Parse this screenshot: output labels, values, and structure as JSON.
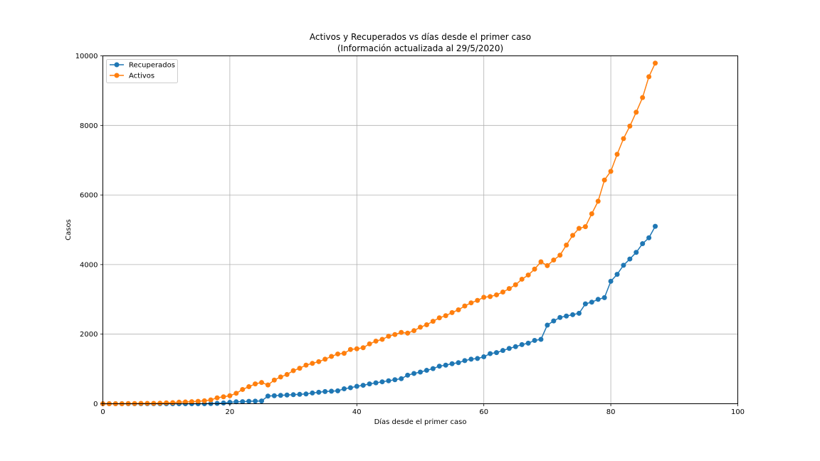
{
  "chart_data": {
    "type": "line",
    "title": "Activos y Recuperados vs días desde el primer caso",
    "subtitle": "(Información actualizada al 29/5/2020)",
    "xlabel": "Días desde el primer caso",
    "ylabel": "Casos",
    "xlim": [
      0,
      100
    ],
    "ylim": [
      0,
      10000
    ],
    "xticks": [
      0,
      20,
      40,
      60,
      80,
      100
    ],
    "yticks": [
      0,
      2000,
      4000,
      6000,
      8000,
      10000
    ],
    "grid": true,
    "legend_position": "top-left",
    "series": [
      {
        "name": "Recuperados",
        "color": "#1f77b4",
        "x": [
          0,
          1,
          2,
          3,
          4,
          5,
          6,
          7,
          8,
          9,
          10,
          11,
          12,
          13,
          14,
          15,
          16,
          17,
          18,
          19,
          20,
          21,
          22,
          23,
          24,
          25,
          26,
          27,
          28,
          29,
          30,
          31,
          32,
          33,
          34,
          35,
          36,
          37,
          38,
          39,
          40,
          41,
          42,
          43,
          44,
          45,
          46,
          47,
          48,
          49,
          50,
          51,
          52,
          53,
          54,
          55,
          56,
          57,
          58,
          59,
          60,
          61,
          62,
          63,
          64,
          65,
          66,
          67,
          68,
          69,
          70,
          71,
          72,
          73,
          74,
          75,
          76,
          77,
          78,
          79,
          80,
          81,
          82,
          83,
          84,
          85,
          86,
          87
        ],
        "y": [
          0,
          0,
          0,
          0,
          0,
          0,
          0,
          0,
          0,
          0,
          0,
          0,
          0,
          0,
          0,
          0,
          0,
          5,
          10,
          20,
          40,
          55,
          60,
          70,
          75,
          80,
          220,
          230,
          240,
          250,
          260,
          270,
          280,
          310,
          330,
          350,
          360,
          370,
          430,
          460,
          500,
          530,
          570,
          600,
          630,
          660,
          690,
          720,
          820,
          870,
          910,
          960,
          1010,
          1080,
          1110,
          1150,
          1180,
          1240,
          1280,
          1300,
          1350,
          1440,
          1470,
          1530,
          1590,
          1640,
          1700,
          1740,
          1820,
          1850,
          2260,
          2380,
          2480,
          2520,
          2560,
          2600,
          2870,
          2920,
          3000,
          3050,
          3520,
          3720,
          3980,
          4160,
          4350,
          4600,
          4770,
          5100
        ]
      },
      {
        "name": "Activos",
        "color": "#ff7f0e",
        "x": [
          0,
          1,
          2,
          3,
          4,
          5,
          6,
          7,
          8,
          9,
          10,
          11,
          12,
          13,
          14,
          15,
          16,
          17,
          18,
          19,
          20,
          21,
          22,
          23,
          24,
          25,
          26,
          27,
          28,
          29,
          30,
          31,
          32,
          33,
          34,
          35,
          36,
          37,
          38,
          39,
          40,
          41,
          42,
          43,
          44,
          45,
          46,
          47,
          48,
          49,
          50,
          51,
          52,
          53,
          54,
          55,
          56,
          57,
          58,
          59,
          60,
          61,
          62,
          63,
          64,
          65,
          66,
          67,
          68,
          69,
          70,
          71,
          72,
          73,
          74,
          75,
          76,
          77,
          78,
          79,
          80,
          81,
          82,
          83,
          84,
          85,
          86,
          87
        ],
        "y": [
          0,
          0,
          0,
          0,
          5,
          5,
          10,
          10,
          10,
          15,
          25,
          30,
          45,
          50,
          60,
          70,
          85,
          110,
          170,
          200,
          230,
          300,
          410,
          490,
          570,
          610,
          540,
          680,
          770,
          840,
          950,
          1020,
          1110,
          1160,
          1210,
          1280,
          1360,
          1430,
          1450,
          1560,
          1580,
          1610,
          1720,
          1800,
          1850,
          1940,
          1990,
          2050,
          2030,
          2100,
          2200,
          2270,
          2370,
          2470,
          2530,
          2620,
          2700,
          2810,
          2900,
          2970,
          3060,
          3080,
          3130,
          3210,
          3310,
          3420,
          3580,
          3700,
          3870,
          4080,
          3970,
          4130,
          4270,
          4560,
          4840,
          5040,
          5090,
          5460,
          5820,
          6430,
          6680,
          7170,
          7620,
          7980,
          8380,
          8800,
          9400,
          9790
        ]
      }
    ]
  }
}
